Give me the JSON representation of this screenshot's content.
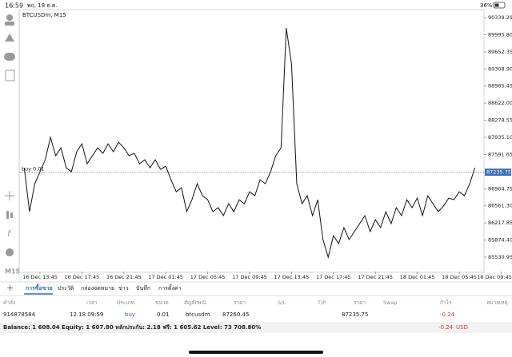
{
  "status_bar": {
    "time": "16:59",
    "date": "พฤ. 18 ธ.ค.",
    "battery": "36%"
  },
  "sidebar": {
    "timeframe": "M15"
  },
  "chart_data": {
    "type": "line",
    "title": "BTCUSDm, M15",
    "categories": [
      null,
      null,
      null,
      "16 Dec 13:45",
      null,
      null,
      null,
      null,
      null,
      null,
      null,
      "16 Dec 17:45",
      null,
      null,
      null,
      null,
      null,
      null,
      null,
      "16 Dec 21:45",
      null,
      null,
      null,
      null,
      null,
      null,
      null,
      "17 Dec 01:45",
      null,
      null,
      null,
      null,
      null,
      null,
      null,
      "17 Dec 05:45",
      null,
      null,
      null,
      null,
      null,
      null,
      null,
      "17 Dec 09:45",
      null,
      null,
      null,
      null,
      null,
      null,
      null,
      "17 Dec 13:45",
      null,
      null,
      null,
      null,
      null,
      null,
      null,
      "17 Dec 17:45",
      null,
      null,
      null,
      null,
      null,
      null,
      null,
      "17 Dec 21:45",
      null,
      null,
      null,
      null,
      null,
      null,
      null,
      "18 Dec 01:45",
      null,
      null,
      null,
      null,
      null,
      null,
      null,
      "18 Dec 05:45",
      null,
      null,
      null,
      null,
      null,
      null,
      null,
      "18 Dec 09:45"
    ],
    "series": [
      {
        "name": "BTCUSDm",
        "color": "#111111",
        "values": [
          87325,
          86444,
          87005,
          87245,
          87486,
          87935,
          87566,
          87726,
          87325,
          87245,
          87646,
          87806,
          87406,
          87566,
          87726,
          87614,
          87806,
          87646,
          87838,
          87726,
          87566,
          87614,
          87406,
          87486,
          87325,
          87486,
          87293,
          87357,
          87085,
          86844,
          86925,
          86444,
          86684,
          87005,
          86764,
          86684,
          86444,
          86524,
          86364,
          86604,
          86444,
          86684,
          86604,
          86844,
          86764,
          87085,
          87005,
          87245,
          87566,
          87726,
          90131,
          89409,
          87005,
          86604,
          86764,
          86364,
          86684,
          85883,
          85530,
          85963,
          85803,
          86123,
          85883,
          86043,
          86203,
          86364,
          86043,
          86283,
          86123,
          86444,
          86203,
          86524,
          86364,
          86684,
          86524,
          86716,
          86364,
          86764,
          86604,
          86444,
          86556,
          86716,
          86684,
          86844,
          86764,
          87005,
          87325,
          null,
          null,
          null,
          null,
          null
        ]
      }
    ],
    "ylim": [
      85242,
      90500
    ],
    "yticks": [
      90339.29,
      {
        "value": 89995.8,
        "label": "89995.80"
      },
      89652.35,
      {
        "value": 89308.9,
        "label": "89308.90"
      },
      88965.45,
      {
        "value": 88622,
        "label": "88622.00"
      },
      88278.55,
      {
        "value": 87935.1,
        "label": "87935.10"
      },
      87591.65,
      86904.75,
      {
        "value": 86561.3,
        "label": "86561.30"
      },
      86217.85,
      {
        "value": 85874.4,
        "label": "85874.40"
      },
      85530.95
    ],
    "grid": false,
    "annotations": [
      {
        "text": "buy 0.01",
        "value": 87235.75
      }
    ]
  },
  "tabs": [
    "การซื้อขาย",
    "ประวัติ",
    "กล่องจดหมาย",
    "ข่าว",
    "บันทึก",
    "การตั้งค่า"
  ],
  "table": {
    "headers": [
      "คำสั่ง",
      "เวลา",
      "ประเภท",
      "ขนาด",
      "สัญลักษณ์",
      "ราคา",
      "S/L",
      "T/P",
      "ราคา",
      "Swap",
      "กำไร",
      "หมายเหตุ"
    ],
    "rows": [
      {
        "order": "914878584",
        "time": "12.18 09:59",
        "type": "buy",
        "volume": "0.01",
        "symbol": "btcusdm",
        "open_price": "87260.45",
        "price": "87235.75",
        "profit": "-0.24"
      }
    ]
  },
  "footer": {
    "summary": "Balance: 1 608.04 Equity: 1 607.80 หลักประกัน: 2.18 ฟรี: 1 605.62 Level: 73 708.80%",
    "profit": "-0.24",
    "currency": "USD"
  }
}
